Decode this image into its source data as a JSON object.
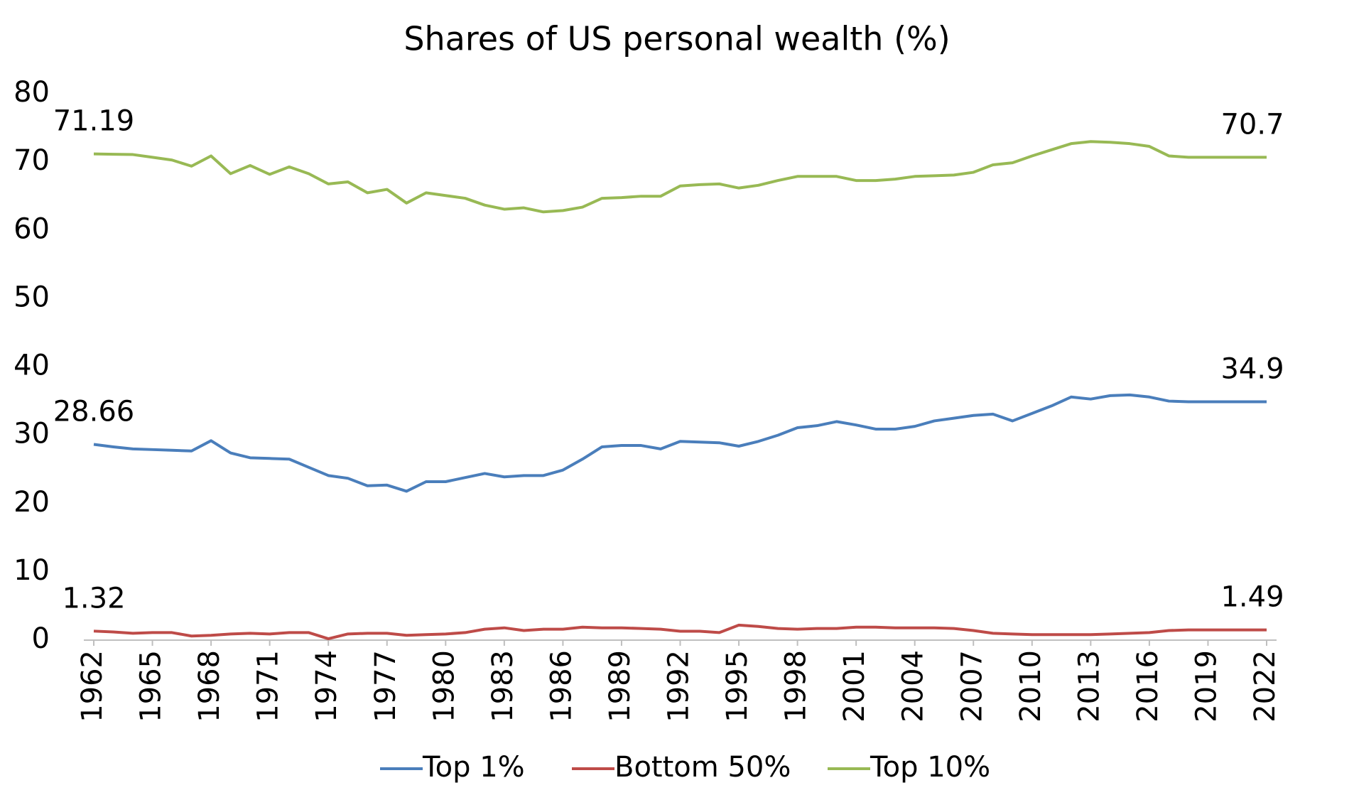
{
  "chart_data": {
    "type": "line",
    "title": "Shares of US personal wealth (%)",
    "x": [
      1962,
      1963,
      1964,
      1965,
      1966,
      1967,
      1968,
      1969,
      1970,
      1971,
      1972,
      1973,
      1974,
      1975,
      1976,
      1977,
      1978,
      1979,
      1980,
      1981,
      1982,
      1983,
      1984,
      1985,
      1986,
      1987,
      1988,
      1989,
      1990,
      1991,
      1992,
      1993,
      1994,
      1995,
      1996,
      1997,
      1998,
      1999,
      2000,
      2001,
      2002,
      2003,
      2004,
      2005,
      2006,
      2007,
      2008,
      2009,
      2010,
      2011,
      2012,
      2013,
      2014,
      2015,
      2016,
      2017,
      2018,
      2019,
      2020,
      2021,
      2022
    ],
    "xlim": [
      1962,
      2022
    ],
    "xticks": [
      1962,
      1965,
      1968,
      1971,
      1974,
      1977,
      1980,
      1983,
      1986,
      1989,
      1992,
      1995,
      1998,
      2001,
      2004,
      2007,
      2010,
      2013,
      2016,
      2019,
      2022
    ],
    "ylim": [
      0,
      80
    ],
    "yticks": [
      0,
      10,
      20,
      30,
      40,
      50,
      60,
      70,
      80
    ],
    "grid": false,
    "legend": "bottom",
    "series": [
      {
        "name": "Top 1%",
        "color": "#4a7ebb",
        "values": [
          28.66,
          28.3,
          28.0,
          27.9,
          27.8,
          27.7,
          29.2,
          27.4,
          26.7,
          26.6,
          26.5,
          25.3,
          24.1,
          23.7,
          22.6,
          22.7,
          21.8,
          23.2,
          23.2,
          23.8,
          24.4,
          23.9,
          24.1,
          24.1,
          24.9,
          26.5,
          28.3,
          28.5,
          28.5,
          28.0,
          29.1,
          29.0,
          28.9,
          28.4,
          29.1,
          30.0,
          31.1,
          31.4,
          32.0,
          31.5,
          30.9,
          30.9,
          31.3,
          32.1,
          32.5,
          32.9,
          33.1,
          32.1,
          33.2,
          34.3,
          35.6,
          35.3,
          35.8,
          35.9,
          35.6,
          35.0,
          34.9,
          34.9,
          34.9,
          34.9,
          34.9
        ]
      },
      {
        "name": "Bottom 50%",
        "color": "#be4b48",
        "values": [
          1.32,
          1.2,
          1.0,
          1.1,
          1.1,
          0.6,
          0.7,
          0.9,
          1.0,
          0.9,
          1.1,
          1.1,
          0.2,
          0.9,
          1.0,
          1.0,
          0.7,
          0.8,
          0.9,
          1.1,
          1.6,
          1.8,
          1.4,
          1.6,
          1.6,
          1.9,
          1.8,
          1.8,
          1.7,
          1.6,
          1.3,
          1.3,
          1.1,
          2.2,
          2.0,
          1.7,
          1.6,
          1.7,
          1.7,
          1.9,
          1.9,
          1.8,
          1.8,
          1.8,
          1.7,
          1.4,
          1.0,
          0.9,
          0.8,
          0.8,
          0.8,
          0.8,
          0.9,
          1.0,
          1.1,
          1.4,
          1.5,
          1.5,
          1.5,
          1.5,
          1.49
        ]
      },
      {
        "name": "Top 10%",
        "color": "#98b954",
        "values": [
          71.19,
          71.15,
          71.1,
          70.7,
          70.3,
          69.4,
          70.9,
          68.3,
          69.5,
          68.2,
          69.3,
          68.3,
          66.8,
          67.1,
          65.5,
          66.0,
          64.0,
          65.5,
          65.1,
          64.7,
          63.7,
          63.1,
          63.3,
          62.7,
          62.9,
          63.4,
          64.7,
          64.8,
          65.0,
          65.0,
          66.5,
          66.7,
          66.8,
          66.2,
          66.6,
          67.3,
          67.9,
          67.9,
          67.9,
          67.3,
          67.3,
          67.5,
          67.9,
          68.0,
          68.1,
          68.5,
          69.6,
          69.9,
          70.9,
          71.8,
          72.7,
          73.0,
          72.9,
          72.7,
          72.3,
          70.9,
          70.7,
          70.7,
          70.7,
          70.7,
          70.7
        ]
      }
    ]
  }
}
